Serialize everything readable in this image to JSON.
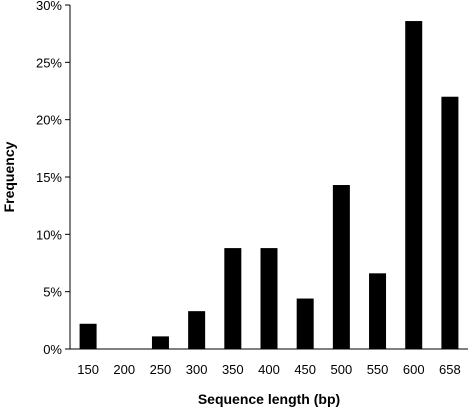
{
  "chart_data": {
    "type": "bar",
    "xlabel": "Sequence length (bp)",
    "ylabel": "Frequency",
    "categories": [
      "150",
      "200",
      "250",
      "300",
      "350",
      "400",
      "450",
      "500",
      "550",
      "600",
      "658"
    ],
    "values": [
      2.2,
      0,
      1.1,
      3.3,
      8.8,
      8.8,
      4.4,
      14.3,
      6.6,
      28.6,
      22.0
    ],
    "ylim": [
      0,
      30
    ],
    "yticks": [
      "0%",
      "5%",
      "10%",
      "15%",
      "20%",
      "25%",
      "30%"
    ],
    "ytick_values": [
      0,
      5,
      10,
      15,
      20,
      25,
      30
    ],
    "grid": false,
    "legend": "none",
    "colors": {
      "bar": "#000000",
      "axis": "#000000"
    }
  }
}
